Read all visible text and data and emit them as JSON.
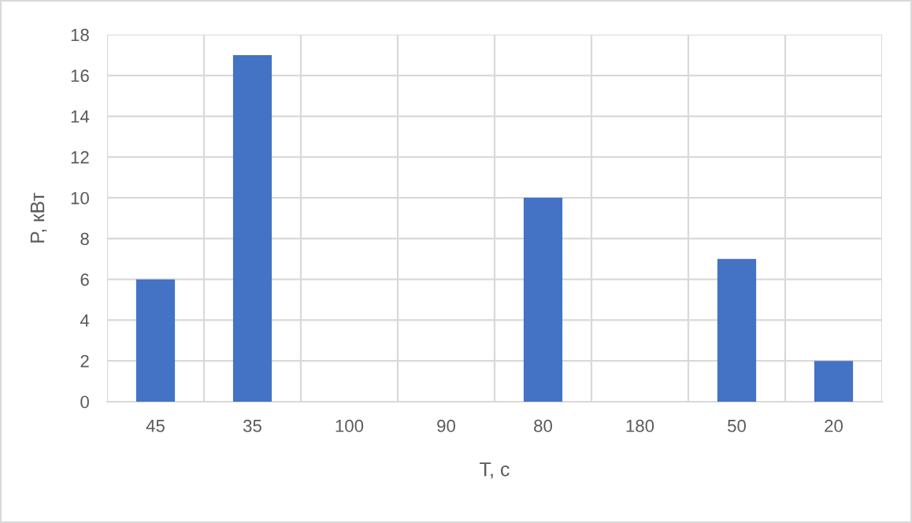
{
  "chart_data": {
    "type": "bar",
    "xlabel": "T, с",
    "ylabel": "P, кВт",
    "categories": [
      "45",
      "35",
      "100",
      "90",
      "80",
      "180",
      "50",
      "20"
    ],
    "values": [
      6,
      17,
      0,
      0,
      10,
      0,
      7,
      2
    ],
    "color": "#4472c4",
    "ylim": [
      0,
      18
    ],
    "yticks": [
      0,
      2,
      4,
      6,
      8,
      10,
      12,
      14,
      16,
      18
    ],
    "grid": true
  }
}
